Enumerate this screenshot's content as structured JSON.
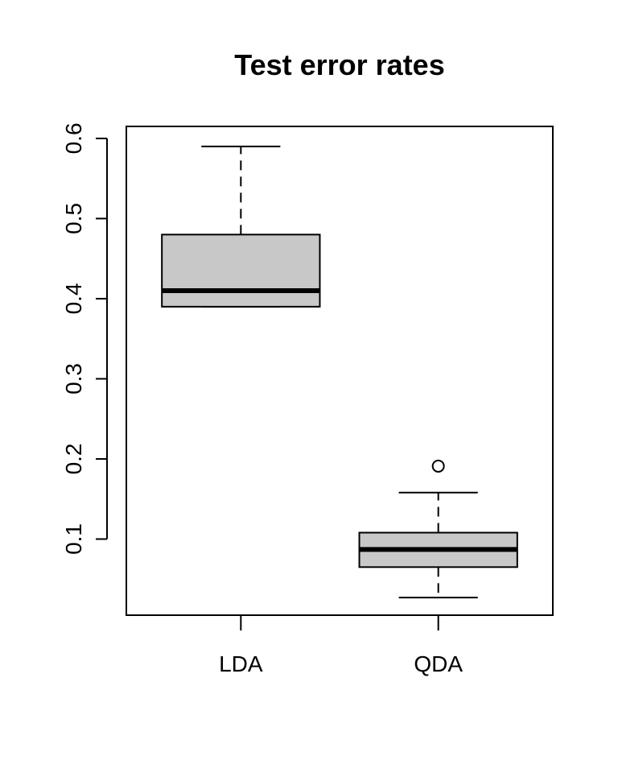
{
  "chart_data": {
    "type": "boxplot",
    "title": "Test error rates",
    "xlabel": "",
    "ylabel": "",
    "categories": [
      "LDA",
      "QDA"
    ],
    "ylim": [
      0.005,
      0.615
    ],
    "yticks": [
      0.1,
      0.2,
      0.3,
      0.4,
      0.5,
      0.6
    ],
    "ytick_labels": [
      "0.1",
      "0.2",
      "0.3",
      "0.4",
      "0.5",
      "0.6"
    ],
    "boxes": [
      {
        "category": "LDA",
        "whisker_low": 0.39,
        "q1": 0.39,
        "median": 0.41,
        "q3": 0.48,
        "whisker_high": 0.59,
        "outliers": []
      },
      {
        "category": "QDA",
        "whisker_low": 0.027,
        "q1": 0.065,
        "median": 0.087,
        "q3": 0.108,
        "whisker_high": 0.158,
        "outliers": [
          0.191
        ]
      }
    ],
    "colors": {
      "box_fill": "#c8c8c8",
      "stroke": "#000000"
    },
    "grid": false,
    "legend": "none"
  }
}
